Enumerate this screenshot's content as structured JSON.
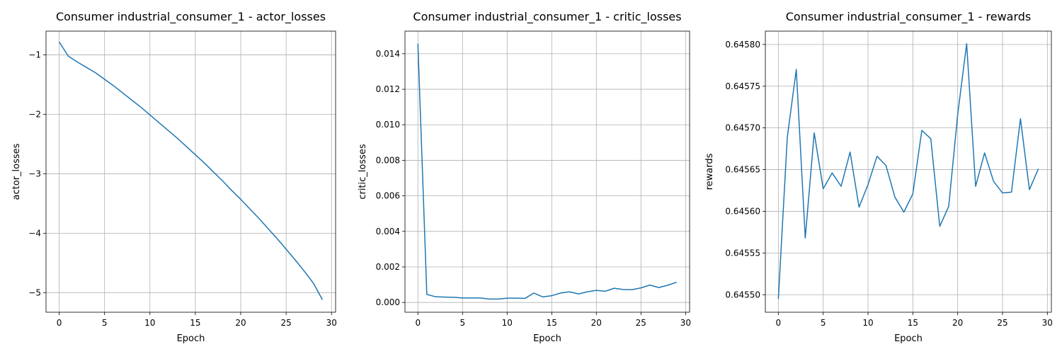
{
  "chart_data": [
    {
      "type": "line",
      "title": "Consumer industrial_consumer_1 - actor_losses",
      "xlabel": "Epoch",
      "ylabel": "actor_losses",
      "xlim": [
        -1.45,
        30.45
      ],
      "ylim": [
        -5.33,
        -0.6
      ],
      "xticks": [
        0,
        5,
        10,
        15,
        20,
        25,
        30
      ],
      "yticks": [
        -5,
        -4,
        -3,
        -2,
        -1
      ],
      "ytick_labels": [
        "−5",
        "−4",
        "−3",
        "−2",
        "−1"
      ],
      "grid": true,
      "color": "#1f77b4",
      "x": [
        0,
        1,
        2,
        3,
        4,
        5,
        6,
        7,
        8,
        9,
        10,
        11,
        12,
        13,
        14,
        15,
        16,
        17,
        18,
        19,
        20,
        21,
        22,
        23,
        24,
        25,
        26,
        27,
        28,
        29
      ],
      "values": [
        -0.78,
        -1.02,
        -1.12,
        -1.21,
        -1.3,
        -1.41,
        -1.52,
        -1.64,
        -1.76,
        -1.88,
        -2.01,
        -2.14,
        -2.27,
        -2.4,
        -2.54,
        -2.68,
        -2.82,
        -2.97,
        -3.12,
        -3.28,
        -3.43,
        -3.59,
        -3.75,
        -3.92,
        -4.09,
        -4.27,
        -4.45,
        -4.64,
        -4.84,
        -5.12
      ]
    },
    {
      "type": "line",
      "title": "Consumer industrial_consumer_1 - critic_losses",
      "xlabel": "Epoch",
      "ylabel": "critic_losses",
      "xlim": [
        -1.45,
        30.45
      ],
      "ylim": [
        -0.00055,
        0.01527
      ],
      "xticks": [
        0,
        5,
        10,
        15,
        20,
        25,
        30
      ],
      "yticks": [
        0.0,
        0.002,
        0.004,
        0.006,
        0.008,
        0.01,
        0.012,
        0.014
      ],
      "ytick_labels": [
        "0.000",
        "0.002",
        "0.004",
        "0.006",
        "0.008",
        "0.010",
        "0.012",
        "0.014"
      ],
      "grid": true,
      "color": "#1f77b4",
      "x": [
        0,
        1,
        2,
        3,
        4,
        5,
        6,
        7,
        8,
        9,
        10,
        11,
        12,
        13,
        14,
        15,
        16,
        17,
        18,
        19,
        20,
        21,
        22,
        23,
        24,
        25,
        26,
        27,
        28,
        29
      ],
      "values": [
        0.01457,
        0.00045,
        0.00032,
        0.0003,
        0.00029,
        0.00025,
        0.00025,
        0.00025,
        0.00019,
        0.00019,
        0.00024,
        0.00024,
        0.00023,
        0.00053,
        0.00031,
        0.00038,
        0.00053,
        0.0006,
        0.00048,
        0.0006,
        0.00068,
        0.00063,
        0.0008,
        0.00073,
        0.00072,
        0.00082,
        0.00098,
        0.00084,
        0.00097,
        0.00114
      ]
    },
    {
      "type": "line",
      "title": "Consumer industrial_consumer_1 - rewards",
      "xlabel": "Epoch",
      "ylabel": "rewards",
      "xlim": [
        -1.45,
        30.45
      ],
      "ylim": [
        0.645479,
        0.645816
      ],
      "xticks": [
        0,
        5,
        10,
        15,
        20,
        25,
        30
      ],
      "yticks": [
        0.6455,
        0.64555,
        0.6456,
        0.64565,
        0.6457,
        0.64575,
        0.6458
      ],
      "ytick_labels": [
        "0.64550",
        "0.64555",
        "0.64560",
        "0.64565",
        "0.64570",
        "0.64575",
        "0.64580"
      ],
      "grid": true,
      "color": "#1f77b4",
      "x": [
        0,
        1,
        2,
        3,
        4,
        5,
        6,
        7,
        8,
        9,
        10,
        11,
        12,
        13,
        14,
        15,
        16,
        17,
        18,
        19,
        20,
        21,
        22,
        23,
        24,
        25,
        26,
        27,
        28,
        29
      ],
      "values": [
        0.645495,
        0.645689,
        0.64577,
        0.645568,
        0.645694,
        0.645627,
        0.645646,
        0.64563,
        0.645671,
        0.645605,
        0.645632,
        0.645666,
        0.645655,
        0.645617,
        0.645599,
        0.645621,
        0.645697,
        0.645687,
        0.645582,
        0.645606,
        0.645716,
        0.645801,
        0.64563,
        0.64567,
        0.645636,
        0.645622,
        0.645623,
        0.645711,
        0.645626,
        0.645651
      ]
    }
  ]
}
